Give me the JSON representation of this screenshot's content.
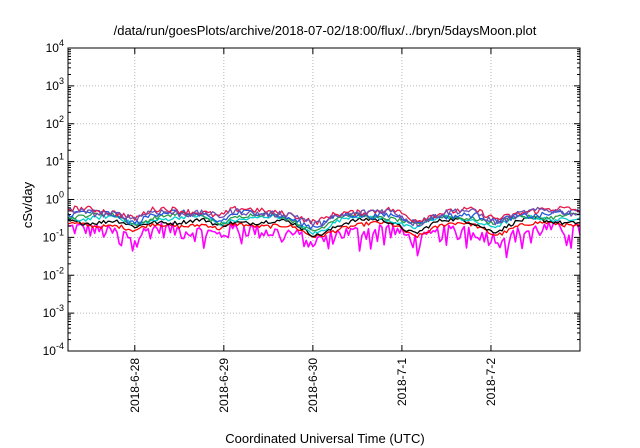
{
  "chart_data": {
    "type": "line",
    "title": "/data/run/goesPlots/archive/2018-07-02/18:00/flux/../bryn/5daysMoon.plot",
    "xlabel": "Coordinated Universal Time (UTC)",
    "ylabel": "cSv/day",
    "yscale": "log",
    "ylim": [
      0.0001,
      10000
    ],
    "xlim_days": [
      -0.75,
      5.0
    ],
    "y_ticks": [
      {
        "base": "10",
        "exp": "-4"
      },
      {
        "base": "10",
        "exp": "-3"
      },
      {
        "base": "10",
        "exp": "-2"
      },
      {
        "base": "10",
        "exp": "-1"
      },
      {
        "base": "10",
        "exp": "0"
      },
      {
        "base": "10",
        "exp": "1"
      },
      {
        "base": "10",
        "exp": "2"
      },
      {
        "base": "10",
        "exp": "3"
      },
      {
        "base": "10",
        "exp": "4"
      }
    ],
    "x_ticks": [
      "2018-6-28",
      "2018-6-29",
      "2018-6-30",
      "2018-7-1",
      "2018-7-2"
    ],
    "grid": true,
    "dips": [
      {
        "center": 0.0,
        "width": 0.15,
        "depth": 0.35
      },
      {
        "center": 0.95,
        "width": 0.12,
        "depth": 0.3
      },
      {
        "center": 2.02,
        "width": 0.25,
        "depth": 0.55
      },
      {
        "center": 3.15,
        "width": 0.2,
        "depth": 0.45
      },
      {
        "center": 4.05,
        "width": 0.2,
        "depth": 0.4
      }
    ],
    "series": [
      {
        "color": "#ff00ff",
        "level": 0.16,
        "noise": 0.45
      },
      {
        "color": "#ff0000",
        "level": 0.22,
        "noise": 0.12
      },
      {
        "color": "#000000",
        "level": 0.27,
        "noise": 0.12
      },
      {
        "color": "#00ced1",
        "level": 0.33,
        "noise": 0.12
      },
      {
        "color": "#2a9d4a",
        "level": 0.37,
        "noise": 0.12
      },
      {
        "color": "#1e5adc",
        "level": 0.42,
        "noise": 0.18
      },
      {
        "color": "#e6194b",
        "level": 0.52,
        "noise": 0.18
      },
      {
        "color": "#6a4fb0",
        "level": 0.47,
        "noise": 0.2
      }
    ]
  }
}
